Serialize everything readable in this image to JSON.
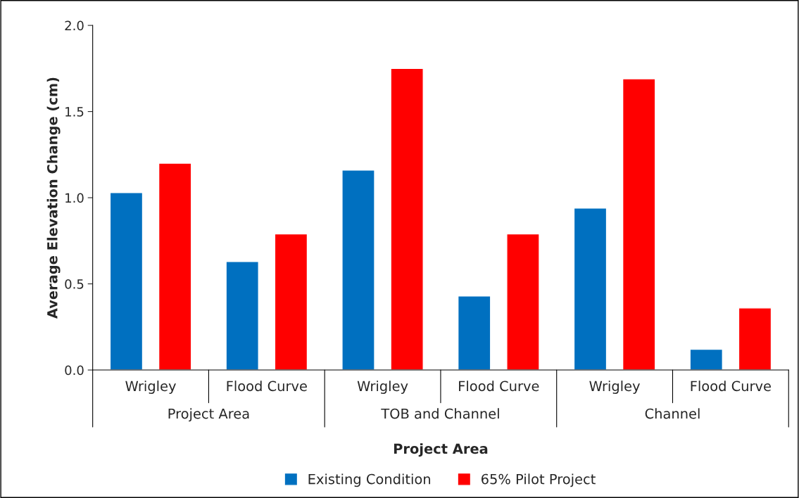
{
  "chart_data": {
    "type": "bar",
    "categories": [
      "Wrigley",
      "Flood Curve",
      "Wrigley",
      "Flood Curve",
      "Wrigley",
      "Flood Curve"
    ],
    "annotations": [
      "Project Area",
      "TOB and Channel",
      "Channel"
    ],
    "xlabel": "Project Area",
    "ylabel": "Average Elevation Change (cm)",
    "series": [
      {
        "name": "Existing Condition",
        "color": "#0070c0",
        "values": [
          1.03,
          0.63,
          1.16,
          0.43,
          0.94,
          0.12
        ]
      },
      {
        "name": "65% Pilot Project",
        "color": "#ff0000",
        "values": [
          1.2,
          0.79,
          1.75,
          0.79,
          1.69,
          0.36
        ]
      }
    ],
    "ylim": [
      0,
      2.0
    ],
    "yticks": [
      {
        "value": 0,
        "label": "0.0"
      },
      {
        "value": 0.5,
        "label": "0.5"
      },
      {
        "value": 1.0,
        "label": "1.0"
      },
      {
        "value": 1.5,
        "label": "1.5"
      },
      {
        "value": 2.0,
        "label": "2.0"
      }
    ],
    "grid": false,
    "legend": "bottom"
  }
}
